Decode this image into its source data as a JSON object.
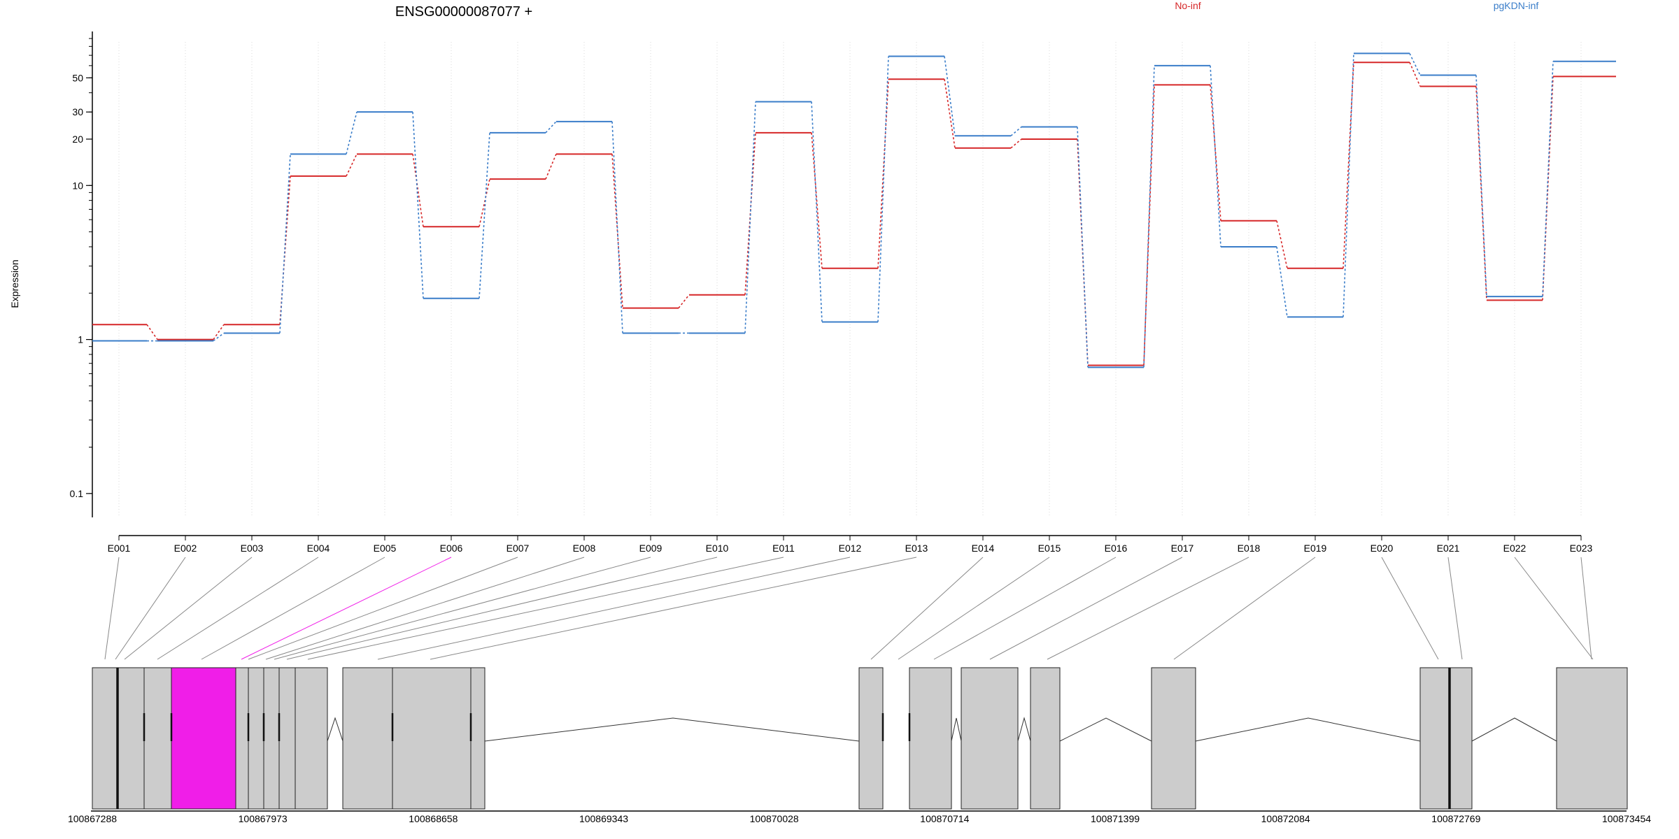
{
  "chart_data": {
    "type": "line",
    "title": "ENSG00000087077 +",
    "ylabel": "Expression",
    "y_scale": "log",
    "ylim": [
      0.07,
      100
    ],
    "y_ticks": [
      0.1,
      1,
      10,
      20,
      30,
      50
    ],
    "y_tick_labels": [
      "0.1",
      "1",
      "10",
      "20",
      "30",
      "50"
    ],
    "grid": "vertical dotted lines at each exon",
    "legend": "top-right",
    "categories": [
      "E001",
      "E002",
      "E003",
      "E004",
      "E005",
      "E006",
      "E007",
      "E008",
      "E009",
      "E010",
      "E011",
      "E012",
      "E013",
      "E014",
      "E015",
      "E016",
      "E017",
      "E018",
      "E019",
      "E020",
      "E021",
      "E022",
      "E023"
    ],
    "series": [
      {
        "name": "No-inf",
        "color": "#d62728",
        "values": [
          1.25,
          1.0,
          1.25,
          11.5,
          16,
          5.4,
          11,
          16,
          1.6,
          1.95,
          22,
          2.9,
          49,
          17.5,
          20,
          0.68,
          45,
          5.9,
          2.9,
          63,
          44,
          1.8,
          51
        ]
      },
      {
        "name": "pgKDN-inf",
        "color": "#3a7dc9",
        "values": [
          0.98,
          0.98,
          1.1,
          16,
          30,
          1.85,
          22,
          26,
          1.1,
          1.1,
          35,
          1.3,
          69,
          21,
          24,
          0.66,
          60,
          4.0,
          1.4,
          72,
          52,
          1.9,
          64
        ]
      }
    ],
    "gene_model": {
      "coordinate_labels": [
        "100867288",
        "100867973",
        "100868658",
        "100869343",
        "100870028",
        "100870714",
        "100871399",
        "100872084",
        "100872769",
        "100873454"
      ],
      "highlight_color": "#f01ee8",
      "highlighted_exon": "E006",
      "box_color": "#cccccc"
    }
  }
}
